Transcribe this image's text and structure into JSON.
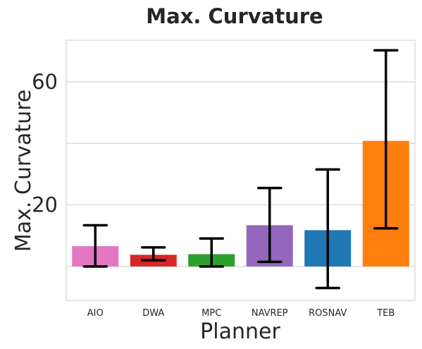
{
  "chart_data": {
    "type": "bar",
    "title": "Max. Curvature",
    "xlabel": "Planner",
    "ylabel": "Max. Curvature",
    "categories": [
      "AIO",
      "DWA",
      "MPC",
      "NAVREP",
      "ROSNAV",
      "TEB"
    ],
    "values": [
      6.6,
      3.8,
      4.0,
      13.4,
      11.8,
      40.8
    ],
    "error_low": [
      0.0,
      2.0,
      0.0,
      1.5,
      -7.0,
      12.4
    ],
    "error_high": [
      13.4,
      6.2,
      9.1,
      25.5,
      31.5,
      70.2
    ],
    "colors": [
      "#e377c2",
      "#d62728",
      "#2ca02c",
      "#9467bd",
      "#1f77b4",
      "#ff7f0e"
    ],
    "yticks": [
      20,
      60
    ],
    "ylim": [
      -11,
      73.5
    ],
    "grid": true,
    "grid_values": [
      0,
      20,
      40,
      60
    ]
  }
}
